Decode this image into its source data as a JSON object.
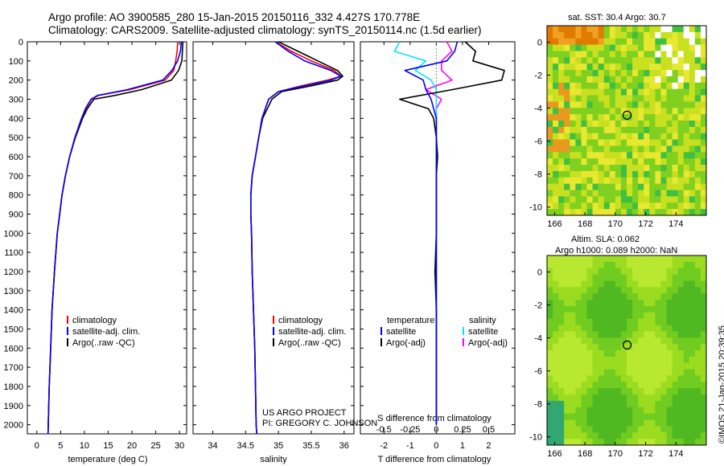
{
  "header": {
    "line1": "Argo profile: AO 3900585_280 15-Jan-2015 20150116_332 4.427S 170.778E",
    "line2": "Climatology: CARS2009. Satellite-adjusted climatology: synTS_20150114.nc (1.5d earlier)"
  },
  "colors": {
    "climatology": "#ff0000",
    "satellite": "#0000ff",
    "argo": "#000000",
    "argo_salinity": "#ff00ff",
    "satellite_salinity": "#00e5ff"
  },
  "depth_axis": {
    "ticks": [
      "0",
      "100",
      "200",
      "300",
      "400",
      "500",
      "600",
      "700",
      "800",
      "900",
      "1000",
      "1100",
      "1200",
      "1300",
      "1400",
      "1500",
      "1600",
      "1700",
      "1800",
      "1900",
      "2000"
    ]
  },
  "panels": {
    "temperature": {
      "xlabel": "temperature (deg C)",
      "xticks": [
        "0",
        "5",
        "10",
        "15",
        "20",
        "25",
        "30"
      ],
      "legend": [
        "climatology",
        "satellite-adj. clim.",
        "Argo(..raw -QC)"
      ]
    },
    "salinity": {
      "xlabel": "salinity",
      "xticks": [
        "34",
        "34.5",
        "35",
        "35.5",
        "36"
      ],
      "legend": [
        "climatology",
        "satellite-adj. clim.",
        "Argo(..raw -QC)"
      ],
      "credit1": "US ARGO PROJECT",
      "credit2": "PI: GREGORY C. JOHNSON"
    },
    "difference": {
      "xlabel": "T difference from climatology",
      "top_label": "S difference from climatology",
      "s_ticks": [
        "-0.5",
        "-0.25",
        "0",
        "0.25",
        "0.5"
      ],
      "t_ticks": [
        "-2",
        "-1",
        "0",
        "1",
        "2"
      ],
      "legend": {
        "temperature_title": "temperature",
        "salinity_title": "salinity",
        "t_sat": "satellite",
        "t_argo": "Argo(-adj)",
        "s_sat": "satellite",
        "s_argo": "Argo(-adj)"
      }
    }
  },
  "maps": {
    "sst_title": "sat. SST: 30.4  Argo: 30.7",
    "sla_title1": "Altim. SLA: 0.062",
    "sla_title2": "Argo h1000: 0.089 h2000: NaN",
    "lon_ticks": [
      "166",
      "168",
      "170",
      "172",
      "174"
    ],
    "lat_ticks": [
      "0",
      "-2",
      "-4",
      "-6",
      "-8",
      "-10"
    ]
  },
  "sidebar_text": "©IMOS 21-Jan-2015 20:39:35",
  "chart_data": [
    {
      "type": "line",
      "xlabel": "temperature (deg C)",
      "ylabel": "",
      "xlim": [
        -2,
        31.5
      ],
      "ylim": [
        2050,
        0
      ],
      "depth": [
        0,
        50,
        100,
        150,
        200,
        250,
        280,
        300,
        350,
        400,
        500,
        600,
        700,
        800,
        900,
        1000,
        1200,
        1400,
        1600,
        1800,
        2000,
        2050
      ],
      "series": [
        {
          "name": "climatology",
          "values": [
            29.6,
            29.5,
            29.2,
            28.8,
            27.0,
            19.5,
            13.0,
            11.5,
            10.3,
            9.4,
            8.0,
            6.9,
            6.0,
            5.3,
            4.8,
            4.3,
            3.7,
            3.2,
            2.9,
            2.6,
            2.4,
            2.35
          ]
        },
        {
          "name": "satellite-adj. clim.",
          "values": [
            30.4,
            30.2,
            29.6,
            28.4,
            26.5,
            19.0,
            12.8,
            11.4,
            10.2,
            9.4,
            8.0,
            6.9,
            6.0,
            5.3,
            4.8,
            4.3,
            3.7,
            3.2,
            2.9,
            2.6,
            2.4,
            2.35
          ]
        },
        {
          "name": "Argo(..raw -QC)",
          "values": [
            30.7,
            30.6,
            30.5,
            29.8,
            28.3,
            22.0,
            16.5,
            12.0,
            10.6,
            9.6,
            8.1,
            6.9,
            6.0,
            5.3,
            4.8,
            4.3,
            3.7,
            3.2,
            2.9,
            2.6,
            2.4,
            2.35
          ]
        }
      ]
    },
    {
      "type": "line",
      "xlabel": "salinity",
      "ylabel": "",
      "xlim": [
        33.7,
        36.15
      ],
      "ylim": [
        2050,
        0
      ],
      "depth": [
        0,
        50,
        100,
        150,
        180,
        200,
        230,
        260,
        300,
        400,
        500,
        600,
        700,
        800,
        900,
        1000,
        1200,
        1400,
        1600,
        1800,
        2000,
        2050
      ],
      "series": [
        {
          "name": "climatology",
          "values": [
            34.95,
            35.2,
            35.5,
            35.85,
            35.95,
            35.75,
            35.35,
            35.0,
            34.85,
            34.75,
            34.7,
            34.65,
            34.6,
            34.58,
            34.58,
            34.59,
            34.6,
            34.62,
            34.64,
            34.65,
            34.66,
            34.67
          ]
        },
        {
          "name": "satellite-adj. clim.",
          "values": [
            34.95,
            35.15,
            35.4,
            35.8,
            35.95,
            35.8,
            35.4,
            35.0,
            34.85,
            34.75,
            34.7,
            34.65,
            34.6,
            34.58,
            34.58,
            34.59,
            34.6,
            34.62,
            34.64,
            34.65,
            34.66,
            34.67
          ]
        },
        {
          "name": "Argo(..raw -QC)",
          "values": [
            35.0,
            35.3,
            35.6,
            35.9,
            35.98,
            35.9,
            35.5,
            35.05,
            34.9,
            34.76,
            34.7,
            34.65,
            34.6,
            34.58,
            34.58,
            34.59,
            34.6,
            34.62,
            34.64,
            34.65,
            34.66,
            34.67
          ]
        }
      ]
    },
    {
      "type": "line",
      "xlabel": "T difference from climatology",
      "ylabel": "",
      "xlim": [
        -2.9,
        3
      ],
      "ylim": [
        2050,
        0
      ],
      "depth": [
        0,
        50,
        100,
        150,
        200,
        250,
        300,
        350,
        400,
        500,
        600,
        700,
        800,
        1000,
        1200,
        1400,
        1600,
        1800,
        2000
      ],
      "series": [
        {
          "name": "temperature satellite",
          "values": [
            0.8,
            0.7,
            0.4,
            -1.2,
            -0.5,
            -0.4,
            -0.2,
            -0.1,
            0.0,
            0.0,
            0.0,
            0.0,
            0.0,
            0.0,
            0.0,
            0.0,
            0.0,
            0.0,
            0.0
          ]
        },
        {
          "name": "temperature Argo(-adj)",
          "values": [
            1.1,
            1.5,
            1.4,
            2.6,
            2.5,
            0.6,
            -1.4,
            -0.3,
            -0.1,
            0.0,
            0.05,
            0.0,
            0.0,
            0.0,
            -0.05,
            0.0,
            0.0,
            0.0,
            0.0
          ]
        },
        {
          "name": "salinity satellite",
          "values": [
            -0.35,
            -0.4,
            -0.1,
            -0.2,
            -0.05,
            0.0,
            0.0,
            0.0,
            0.0,
            0.0,
            0.0,
            0.0,
            0.0,
            0.0,
            0.0,
            0.0,
            0.0,
            0.0,
            0.0
          ]
        },
        {
          "name": "salinity Argo(-adj)",
          "values": [
            0.1,
            0.15,
            0.05,
            0.05,
            0.15,
            -0.1,
            0.05,
            0.0,
            0.0,
            0.0,
            0.0,
            0.0,
            0.0,
            0.0,
            0.0,
            0.0,
            0.0,
            0.0,
            0.0
          ]
        }
      ]
    }
  ]
}
